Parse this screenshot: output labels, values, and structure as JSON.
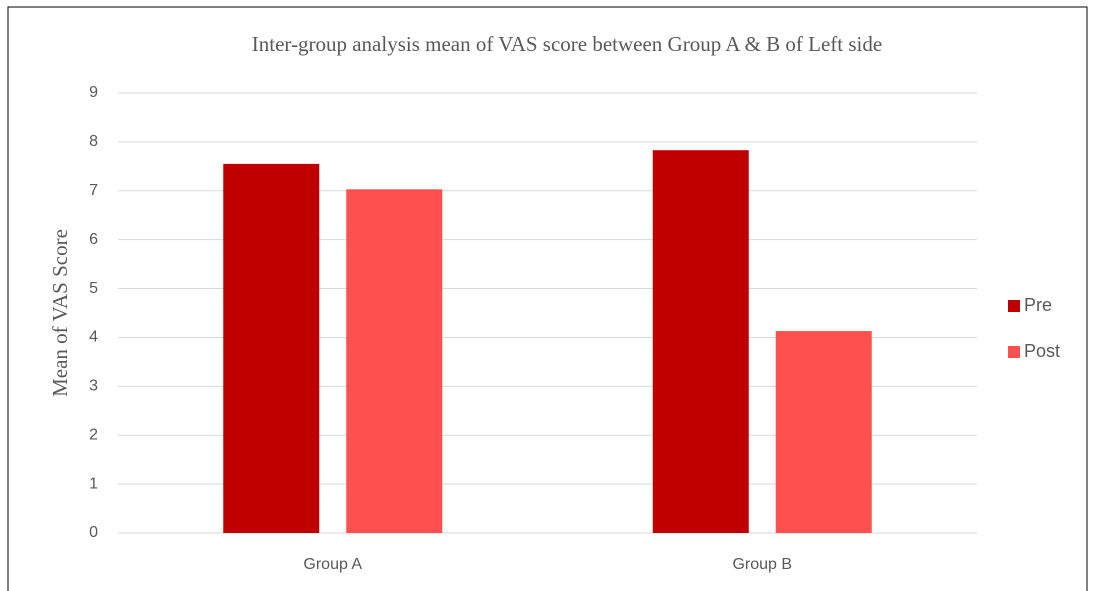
{
  "chart_data": {
    "type": "bar",
    "title": "Inter-group analysis mean of VAS score between Group A & B of Left side",
    "y_label": "Mean of VAS Score",
    "categories": [
      "Group A",
      "Group B"
    ],
    "series": [
      {
        "name": "Pre",
        "color": "#c00000",
        "values": [
          7.55,
          7.83
        ]
      },
      {
        "name": "Post",
        "color": "#ff5050",
        "values": [
          7.03,
          4.13
        ]
      }
    ],
    "ylim": [
      0,
      9
    ],
    "yticks": [
      0,
      1,
      2,
      3,
      4,
      5,
      6,
      7,
      8,
      9
    ],
    "grid": true,
    "legend": "right"
  }
}
